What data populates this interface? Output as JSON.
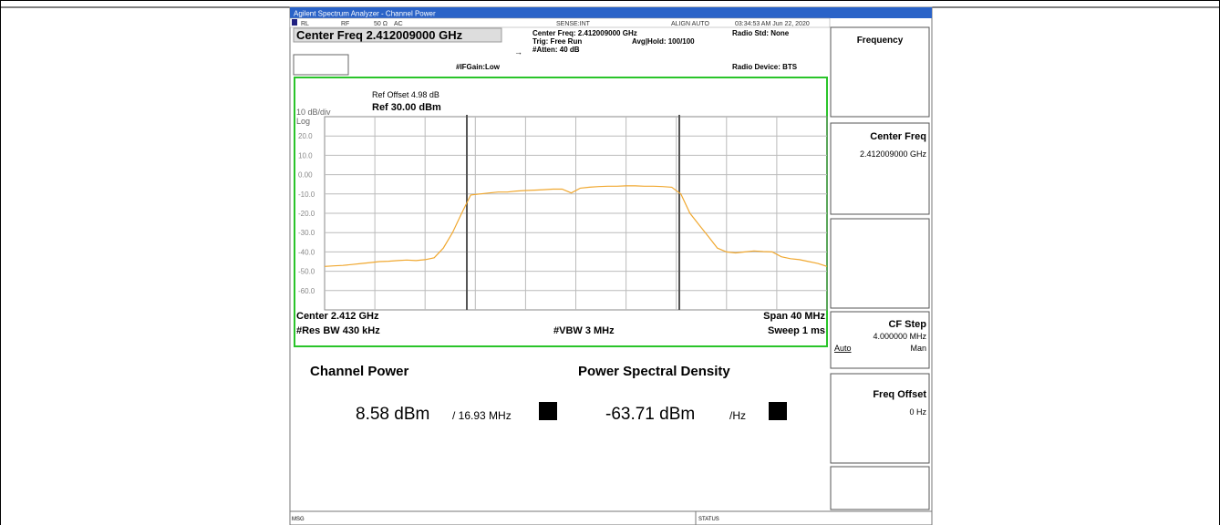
{
  "title_bar": "Agilent Spectrum Analyzer - Channel Power",
  "status_bar": {
    "rl": "RL",
    "rf": "RF",
    "impedance": "50 Ω",
    "coupling": "AC",
    "sense": "SENSE:INT",
    "align": "ALIGN AUTO",
    "timestamp": "03:34:53 AM Jun 22, 2020"
  },
  "header": {
    "center_freq": "Center Freq 2.412009000 GHz",
    "if_gain": "#IFGain:Low",
    "center_freq_info": "Center Freq: 2.412009000 GHz",
    "trig": "Trig: Free Run",
    "atten": "#Atten: 40 dB",
    "avg_hold": "Avg|Hold: 100/100",
    "radio_std": "Radio Std: None",
    "radio_device": "Radio Device: BTS"
  },
  "chart_data": {
    "type": "line",
    "scale_label": "10 dB/div",
    "scale_type": "Log",
    "ref_offset": "Ref Offset 4.98 dB",
    "ref_level": "Ref 30.00 dBm",
    "color": "#f0a830",
    "grid": true,
    "ylim": [
      -70,
      30
    ],
    "yticks": [
      {
        "value": 20,
        "label": "20.0"
      },
      {
        "value": 10,
        "label": "10.0"
      },
      {
        "value": 0,
        "label": "0.00"
      },
      {
        "value": -10,
        "label": "-10.0"
      },
      {
        "value": -20,
        "label": "-20.0"
      },
      {
        "value": -30,
        "label": "-30.0"
      },
      {
        "value": -40,
        "label": "-40.0"
      },
      {
        "value": -50,
        "label": "-50.0"
      },
      {
        "value": -60,
        "label": "-60.0"
      }
    ],
    "values": [
      -47.5,
      -47.2,
      -47,
      -46.5,
      -46,
      -45.5,
      -45,
      -44.8,
      -44.5,
      -44.2,
      -44.5,
      -44,
      -43,
      -38,
      -30,
      -20,
      -10.5,
      -10,
      -9.5,
      -9,
      -9,
      -8.5,
      -8.2,
      -8,
      -7.8,
      -7.5,
      -7.5,
      -9.5,
      -7,
      -6.5,
      -6.2,
      -6,
      -6,
      -5.8,
      -5.8,
      -6,
      -6,
      -6.2,
      -6.5,
      -10,
      -20,
      -26,
      -32,
      -38,
      -40,
      -40.5,
      -40,
      -39.5,
      -39.8,
      -40,
      -42.5,
      -43.5,
      -44,
      -45,
      -46,
      -47.5
    ],
    "center": "Center 2.412 GHz",
    "span": "Span 40 MHz",
    "res_bw": "#Res BW 430 kHz",
    "vbw": "#VBW 3 MHz",
    "sweep": "Sweep 1 ms"
  },
  "measurements": {
    "channel_power_label": "Channel Power",
    "psd_label": "Power Spectral Density",
    "channel_power": "8.58 dBm",
    "bandwidth": "/ 16.93 MHz",
    "psd": "-63.71 dBm",
    "psd_unit": "/Hz"
  },
  "softkeys": [
    {
      "label": "Frequency"
    },
    {
      "label": "Center Freq",
      "value": "2.412009000 GHz"
    },
    {
      "label": "CF Step",
      "value": "4.000000 MHz",
      "options": [
        "Auto",
        "Man"
      ]
    },
    {
      "label": "Freq Offset",
      "value": "0 Hz"
    }
  ],
  "bottom_bar": {
    "msg": "MSG",
    "status": "STATUS"
  }
}
